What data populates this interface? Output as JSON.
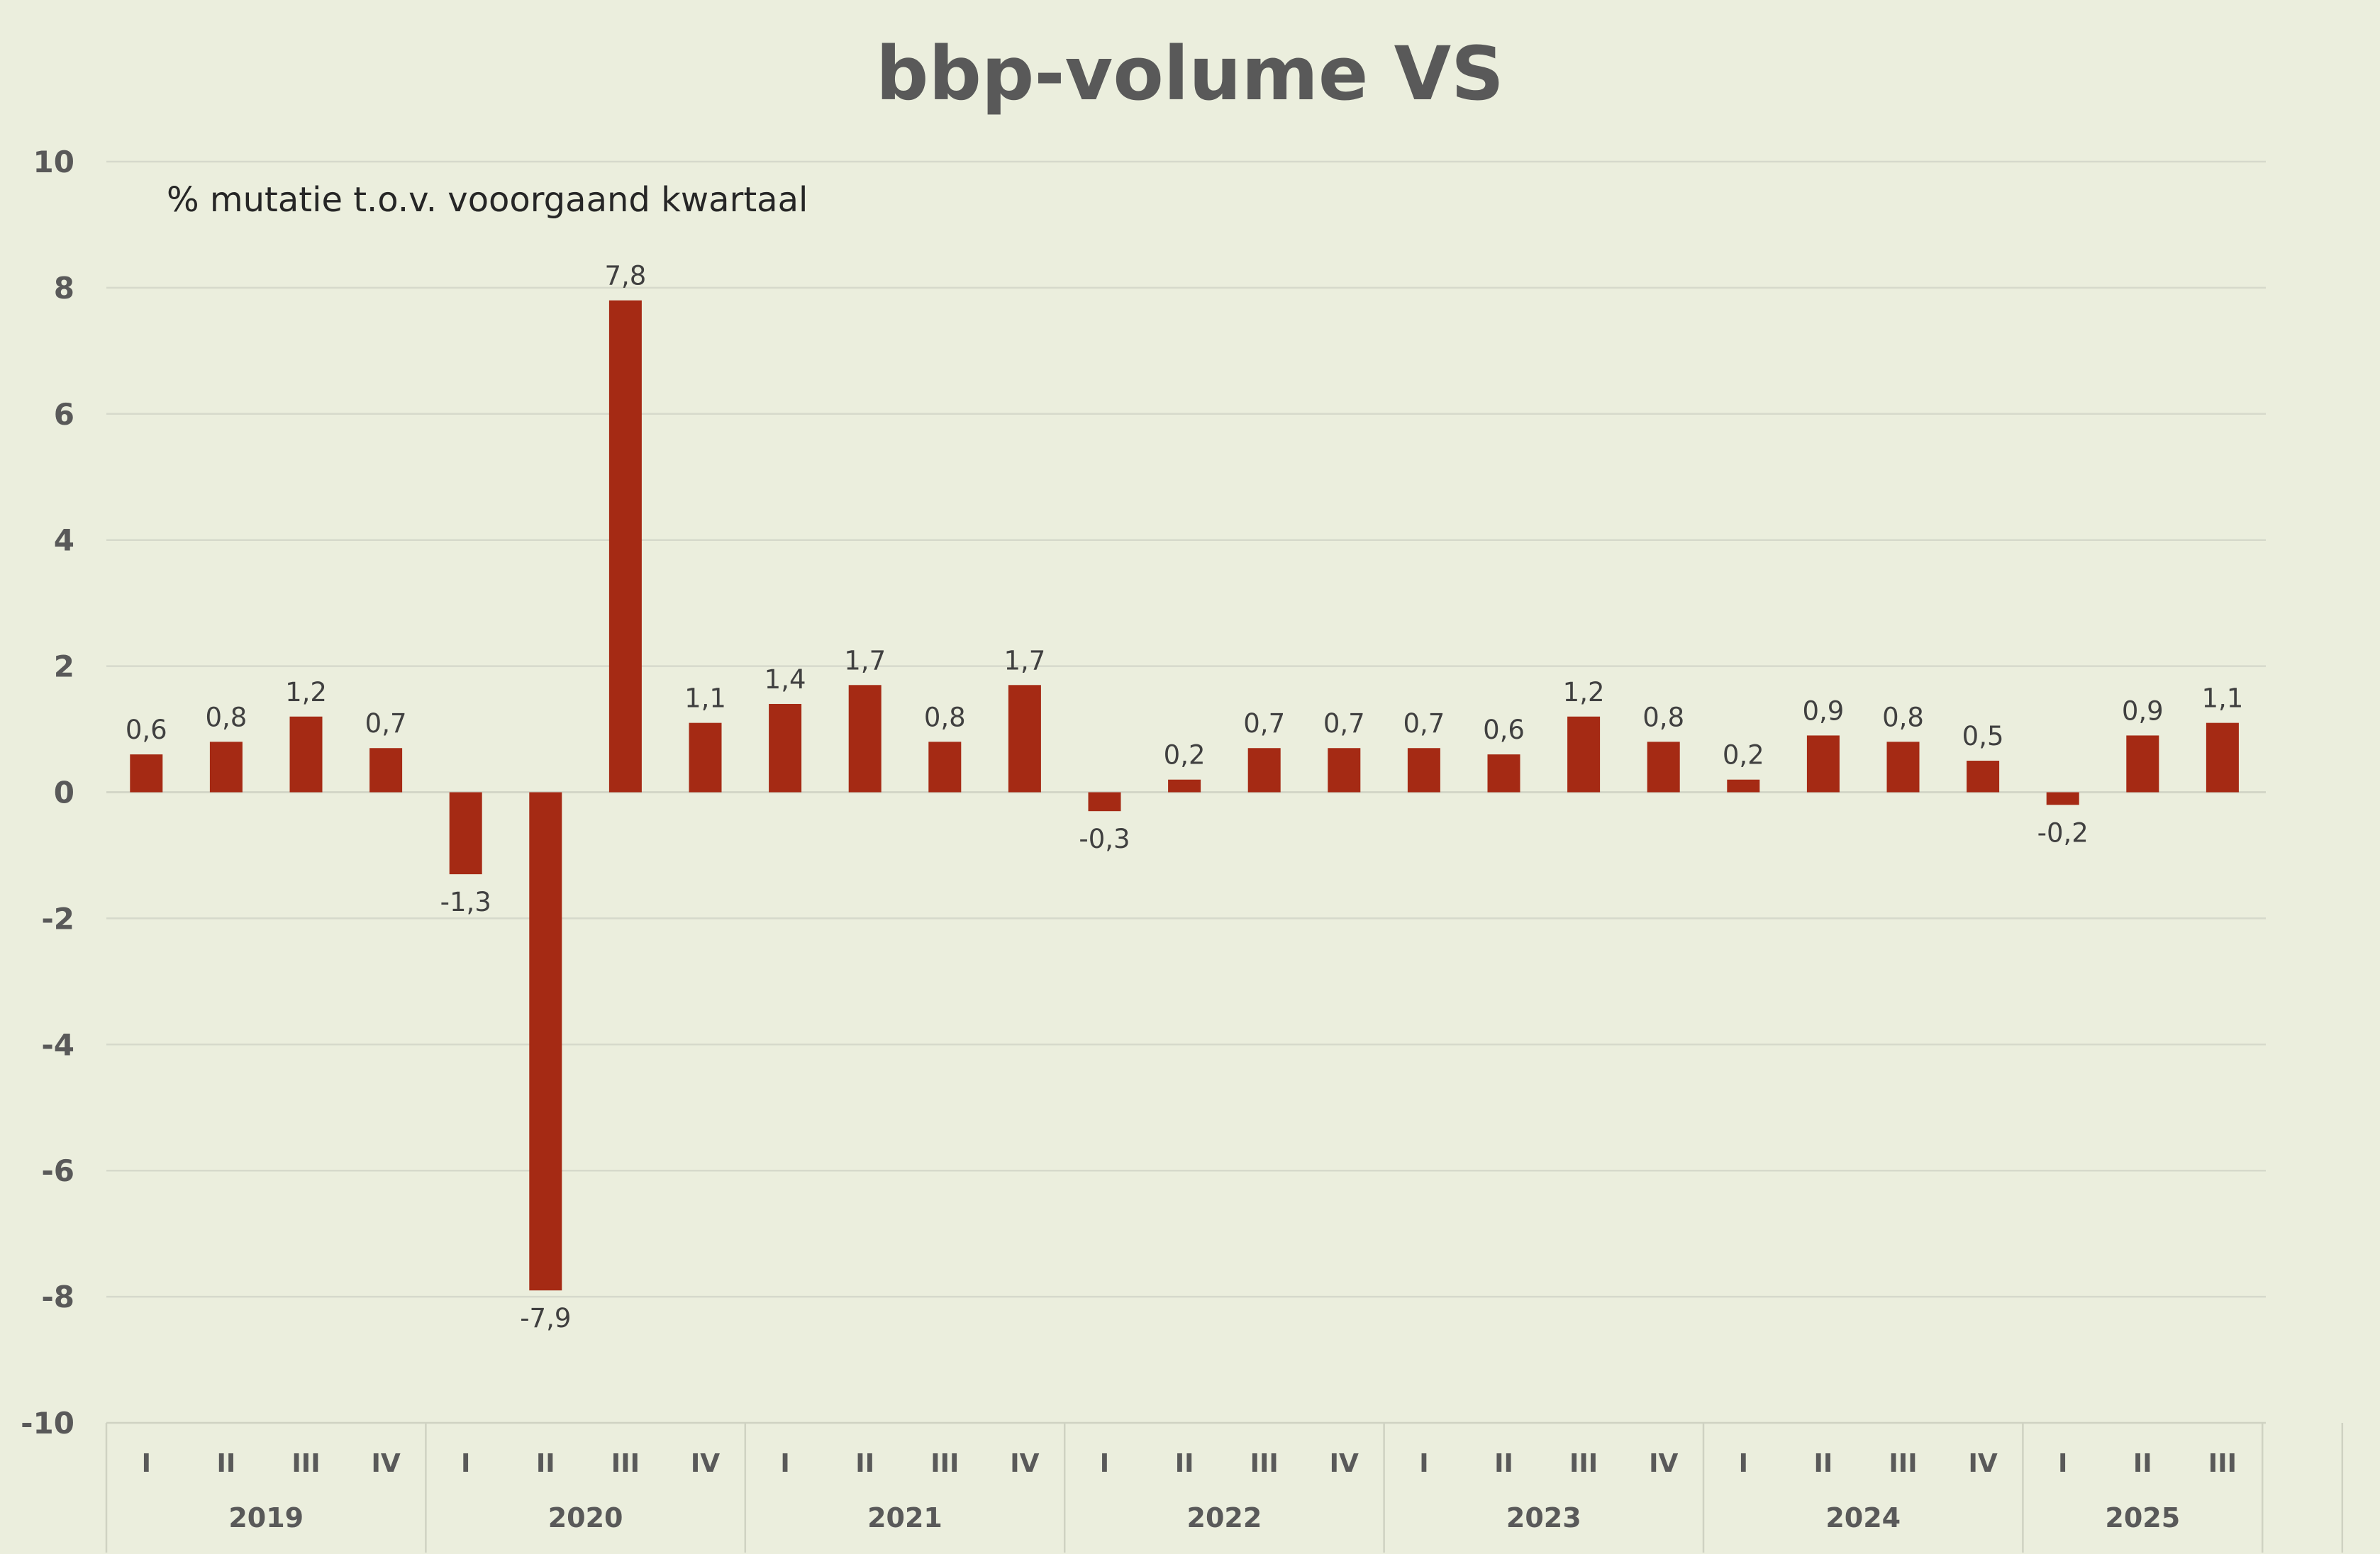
{
  "chart_data": {
    "type": "bar",
    "title": "bbp-volume VS",
    "subtitle": "% mutatie t.o.v. vooorgaand kwartaal",
    "ylim": [
      -10,
      10
    ],
    "yticks": [
      "10",
      "8",
      "6",
      "4",
      "2",
      "0",
      "-2",
      "-4",
      "-6",
      "-8",
      "-10"
    ],
    "ytick_values": [
      10,
      8,
      6,
      4,
      2,
      0,
      -2,
      -4,
      -6,
      -8,
      -10
    ],
    "grid": true,
    "legend": "none",
    "bar_color": "#a52a14",
    "years": [
      {
        "label": "2019",
        "quarters": [
          "I",
          "II",
          "III",
          "IV"
        ]
      },
      {
        "label": "2020",
        "quarters": [
          "I",
          "II",
          "III",
          "IV"
        ]
      },
      {
        "label": "2021",
        "quarters": [
          "I",
          "II",
          "III",
          "IV"
        ]
      },
      {
        "label": "2022",
        "quarters": [
          "I",
          "II",
          "III",
          "IV"
        ]
      },
      {
        "label": "2023",
        "quarters": [
          "I",
          "II",
          "III",
          "IV"
        ]
      },
      {
        "label": "2024",
        "quarters": [
          "I",
          "II",
          "III",
          "IV"
        ]
      },
      {
        "label": "2025",
        "quarters": [
          "I",
          "II",
          "III"
        ]
      }
    ],
    "values": [
      0.6,
      0.8,
      1.2,
      0.7,
      -1.3,
      -7.9,
      7.8,
      1.1,
      1.4,
      1.7,
      0.8,
      1.7,
      -0.3,
      0.2,
      0.7,
      0.7,
      0.7,
      0.6,
      1.2,
      0.8,
      0.2,
      0.9,
      0.8,
      0.5,
      -0.2,
      0.9,
      1.1
    ],
    "data_labels": [
      "0,6",
      "0,8",
      "1,2",
      "0,7",
      "-1,3",
      "-7,9",
      "7,8",
      "1,1",
      "1,4",
      "1,7",
      "0,8",
      "1,7",
      "-0,3",
      "0,2",
      "0,7",
      "0,7",
      "0,7",
      "0,6",
      "1,2",
      "0,8",
      "0,2",
      "0,9",
      "0,8",
      "0,5",
      "-0,2",
      "0,9",
      "1,1"
    ]
  }
}
